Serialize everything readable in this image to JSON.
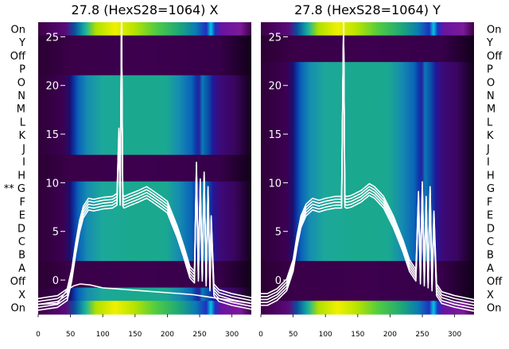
{
  "chart_data": [
    {
      "type": "heatmap",
      "title": "27.8 (HexS28=1064) X",
      "side": "left",
      "row_labels": [
        "On",
        "Y",
        "Off",
        "P",
        "O",
        "N",
        "M",
        "L",
        "K",
        "J",
        "I",
        "H",
        "G",
        "F",
        "E",
        "D",
        "C",
        "B",
        "A",
        "Off",
        "X",
        "On"
      ],
      "flagged_row": {
        "label": "G",
        "marker": "**"
      },
      "x_ticks": [
        0,
        50,
        100,
        150,
        200,
        250,
        300
      ],
      "xlim": [
        0,
        330
      ],
      "y_ticks": [
        0,
        5,
        10,
        15,
        20,
        25
      ],
      "ylim": [
        -3.5,
        26.5
      ],
      "dark_rows": [
        "Y",
        "Off",
        "P",
        "I",
        "H",
        "A",
        "Off"
      ],
      "series": [
        {
          "name": "",
          "x": [
            0,
            10,
            30,
            45,
            52,
            58,
            64,
            70,
            78,
            86,
            100,
            115,
            122,
            125,
            127,
            129,
            131,
            133,
            140,
            155,
            168,
            175,
            190,
            200,
            215,
            225,
            235,
            242,
            245,
            248,
            251,
            254,
            257,
            260,
            263,
            266,
            268,
            272,
            280,
            300,
            330
          ],
          "y": [
            -2.5,
            -2.4,
            -2.2,
            -1.5,
            0.5,
            3.2,
            5.5,
            7.0,
            7.8,
            7.7,
            7.9,
            8.0,
            8.3,
            15.0,
            8.3,
            27.0,
            8.2,
            8.0,
            8.2,
            8.6,
            9.0,
            8.7,
            8.0,
            7.5,
            5.0,
            3.0,
            0.8,
            0.3,
            11.5,
            0.5,
            9.8,
            0.5,
            10.5,
            0.0,
            9.0,
            -0.5,
            6.0,
            -1.0,
            -1.6,
            -2.0,
            -2.4
          ]
        },
        {
          "name": "",
          "x": [
            0,
            30,
            45,
            55,
            65,
            80,
            100,
            120,
            140,
            160,
            180,
            200,
            220,
            240,
            260,
            280,
            300,
            330
          ],
          "y": [
            -2.5,
            -2.4,
            -1.0,
            -0.6,
            -0.4,
            -0.5,
            -0.8,
            -0.9,
            -1.0,
            -1.1,
            -1.2,
            -1.3,
            -1.4,
            -1.5,
            -1.7,
            -1.9,
            -2.1,
            -2.4
          ]
        }
      ]
    },
    {
      "type": "heatmap",
      "title": "27.8 (HexS28=1064) Y",
      "side": "right",
      "row_labels": [
        "On",
        "Y",
        "Off",
        "P",
        "O",
        "N",
        "M",
        "L",
        "K",
        "J",
        "I",
        "H",
        "G",
        "F",
        "E",
        "D",
        "C",
        "B",
        "A",
        "Off",
        "X",
        "On"
      ],
      "x_ticks": [
        0,
        50,
        100,
        150,
        200,
        250,
        300
      ],
      "xlim": [
        0,
        330
      ],
      "y_ticks": [
        0,
        5,
        10,
        15,
        20,
        25
      ],
      "ylim": [
        -3.5,
        26.5
      ],
      "dark_rows": [
        "Y",
        "Off",
        "A",
        "Off",
        "X"
      ],
      "series": [
        {
          "name": "",
          "x": [
            0,
            10,
            25,
            40,
            50,
            56,
            62,
            70,
            80,
            90,
            100,
            115,
            125,
            128,
            130,
            132,
            134,
            140,
            155,
            168,
            176,
            190,
            205,
            220,
            230,
            240,
            244,
            247,
            250,
            253,
            256,
            259,
            262,
            265,
            268,
            272,
            280,
            300,
            330
          ],
          "y": [
            -2.0,
            -2.0,
            -1.5,
            -0.5,
            1.5,
            4.0,
            6.0,
            7.2,
            7.8,
            7.6,
            7.8,
            8.0,
            8.0,
            27.0,
            8.1,
            8.0,
            8.0,
            8.1,
            8.6,
            9.3,
            9.0,
            8.0,
            6.0,
            3.5,
            1.5,
            0.5,
            8.5,
            0.2,
            9.5,
            0.0,
            8.0,
            -0.2,
            9.0,
            -0.5,
            6.5,
            -1.0,
            -1.8,
            -2.2,
            -2.6
          ]
        }
      ]
    }
  ]
}
